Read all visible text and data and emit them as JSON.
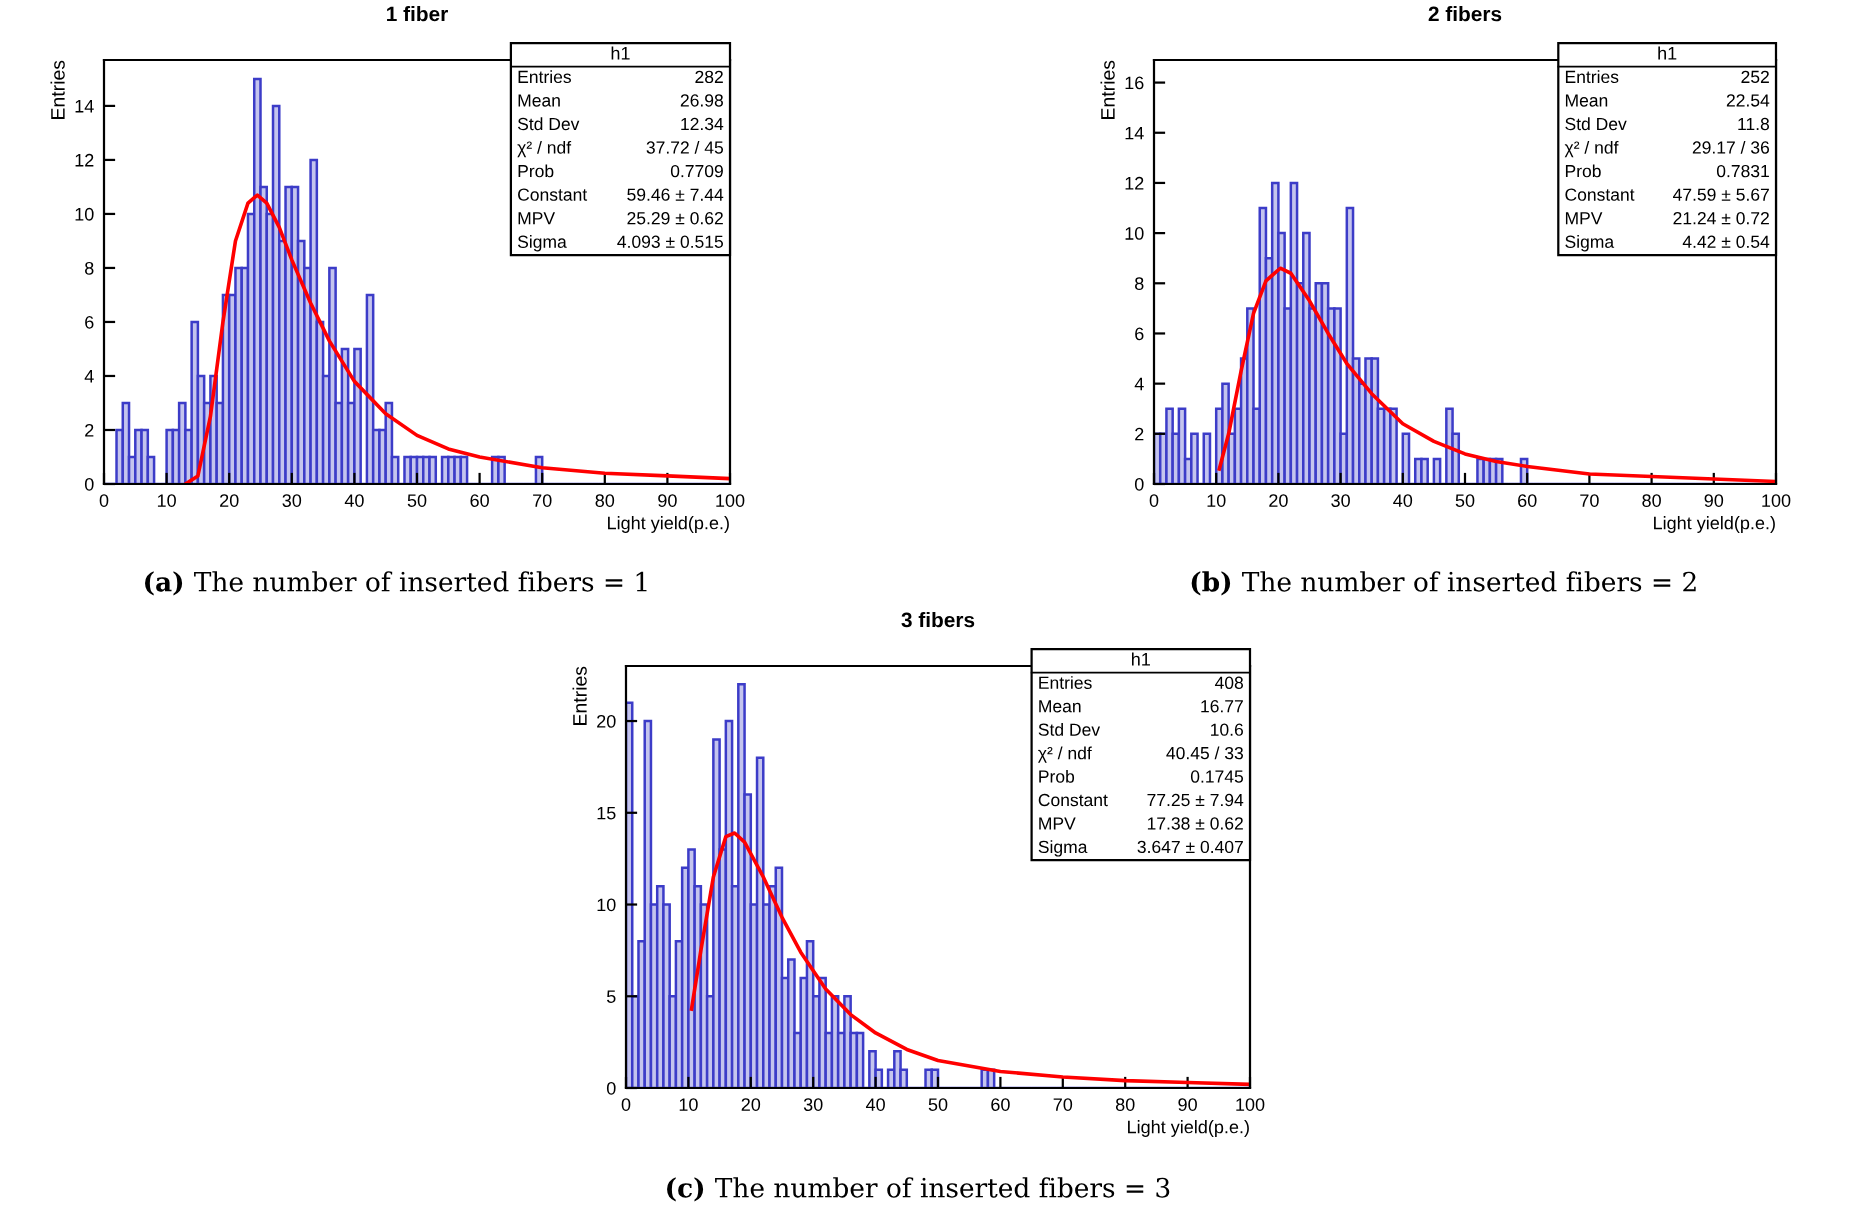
{
  "chart_data": [
    {
      "type": "histogram",
      "title": "1 fiber",
      "xlabel": "Light yield(p.e.)",
      "ylabel": "Entries",
      "bins": [
        0,
        1,
        2,
        3,
        4,
        5,
        6,
        7,
        8,
        9,
        10,
        11,
        12,
        13,
        14,
        15,
        16,
        17,
        18,
        19,
        20,
        21,
        22,
        23,
        24,
        25,
        26,
        27,
        28,
        29,
        30,
        31,
        32,
        33,
        34,
        35,
        36,
        37,
        38,
        39,
        40,
        41,
        42,
        43,
        44,
        45,
        46,
        47,
        48,
        49,
        50,
        51,
        52,
        53,
        54,
        55,
        56,
        57,
        58,
        59,
        60,
        61,
        62,
        63,
        64,
        65,
        66,
        67,
        68,
        69,
        70,
        71,
        72,
        73,
        74,
        75,
        76,
        77,
        78,
        79,
        80,
        81,
        82,
        83,
        84,
        85,
        86,
        87,
        88,
        89,
        90,
        91,
        92,
        93,
        94,
        95,
        96,
        97,
        98,
        99,
        100
      ],
      "series": [
        {
          "type": "histogram",
          "color": "#3c3cc8",
          "values": [
            0,
            0,
            2,
            3,
            1,
            2,
            2,
            1,
            0,
            0,
            2,
            2,
            3,
            2,
            6,
            4,
            3,
            4,
            3,
            7,
            7,
            8,
            8,
            10,
            15,
            11,
            10,
            14,
            9,
            11,
            11,
            9,
            8,
            12,
            6,
            4,
            8,
            3,
            5,
            3,
            5,
            0,
            7,
            2,
            2,
            3,
            1,
            0,
            1,
            1,
            1,
            1,
            1,
            0,
            1,
            1,
            1,
            1,
            0,
            0,
            0,
            0,
            1,
            1,
            0,
            0,
            0,
            0,
            0,
            1,
            0,
            0,
            0,
            0,
            0,
            0,
            0,
            0,
            0,
            0,
            0,
            0,
            0,
            0,
            0,
            0,
            0,
            0,
            0,
            0,
            0,
            0,
            0,
            0,
            0,
            0,
            0,
            0,
            0,
            0
          ]
        },
        {
          "type": "line",
          "color": "#ff0000",
          "x": [
            13,
            15,
            17,
            19,
            21,
            23,
            24.5,
            26,
            28,
            30,
            33,
            36,
            40,
            45,
            50,
            55,
            60,
            70,
            80,
            90,
            100
          ],
          "values": [
            0,
            0.3,
            2.5,
            6,
            9,
            10.4,
            10.7,
            10.4,
            9.5,
            8.3,
            6.7,
            5.3,
            3.8,
            2.6,
            1.8,
            1.3,
            1,
            0.6,
            0.4,
            0.3,
            0.2
          ]
        }
      ],
      "xlim": [
        0,
        100
      ],
      "xticks": [
        0,
        10,
        20,
        30,
        40,
        50,
        60,
        70,
        80,
        90,
        100
      ],
      "ylim": [
        0,
        15.7
      ],
      "yticks": [
        0,
        2,
        4,
        6,
        8,
        10,
        12,
        14
      ],
      "grid": false,
      "legend": false,
      "annotations": [
        "h1",
        "Entries",
        "282",
        "Mean",
        "26.98",
        "Std Dev",
        "12.34",
        "χ² / ndf",
        "37.72 / 45",
        "Prob",
        "0.7709",
        "Constant",
        "59.46 ± 7.44",
        "MPV",
        "25.29 ± 0.62",
        "Sigma",
        "4.093 ± 0.515",
        "(a) The number of inserted fibers = 1"
      ]
    },
    {
      "type": "histogram",
      "title": "2 fibers",
      "xlabel": "Light yield(p.e.)",
      "ylabel": "Entries",
      "bins": [
        0,
        1,
        2,
        3,
        4,
        5,
        6,
        7,
        8,
        9,
        10,
        11,
        12,
        13,
        14,
        15,
        16,
        17,
        18,
        19,
        20,
        21,
        22,
        23,
        24,
        25,
        26,
        27,
        28,
        29,
        30,
        31,
        32,
        33,
        34,
        35,
        36,
        37,
        38,
        39,
        40,
        41,
        42,
        43,
        44,
        45,
        46,
        47,
        48,
        49,
        50,
        51,
        52,
        53,
        54,
        55,
        56,
        57,
        58,
        59,
        60,
        61,
        62,
        63,
        64,
        65,
        66,
        67,
        68,
        69,
        70,
        71,
        72,
        73,
        74,
        75,
        76,
        77,
        78,
        79,
        80,
        81,
        82,
        83,
        84,
        85,
        86,
        87,
        88,
        89,
        90,
        91,
        92,
        93,
        94,
        95,
        96,
        97,
        98,
        99,
        100
      ],
      "series": [
        {
          "type": "histogram",
          "color": "#3c3cc8",
          "values": [
            2,
            2,
            3,
            2,
            3,
            1,
            2,
            0,
            2,
            0,
            3,
            4,
            2,
            3,
            5,
            7,
            3,
            11,
            9,
            12,
            10,
            7,
            12,
            8,
            10,
            7,
            8,
            8,
            7,
            7,
            2,
            11,
            5,
            4,
            5,
            5,
            3,
            3,
            3,
            0,
            2,
            0,
            1,
            1,
            0,
            1,
            0,
            3,
            2,
            0,
            0,
            0,
            1,
            1,
            1,
            1,
            0,
            0,
            0,
            1,
            0,
            0,
            0,
            0,
            0,
            0,
            0,
            0,
            0,
            0,
            0,
            0,
            0,
            0,
            0,
            0,
            0,
            0,
            0,
            0,
            0,
            0,
            0,
            0,
            0,
            0,
            0,
            0,
            0,
            0,
            0,
            0,
            0,
            0,
            0,
            0,
            0,
            0,
            0,
            0
          ]
        },
        {
          "type": "line",
          "color": "#ff0000",
          "x": [
            10.5,
            12,
            14,
            16,
            18,
            20.3,
            22,
            25,
            28,
            31,
            35,
            40,
            45,
            50,
            55,
            60,
            70,
            80,
            90,
            100
          ],
          "values": [
            0.6,
            2,
            4.5,
            6.8,
            8.1,
            8.6,
            8.4,
            7.3,
            6,
            4.8,
            3.6,
            2.4,
            1.7,
            1.2,
            0.9,
            0.7,
            0.4,
            0.3,
            0.2,
            0.1
          ]
        }
      ],
      "xlim": [
        0,
        100
      ],
      "xticks": [
        0,
        10,
        20,
        30,
        40,
        50,
        60,
        70,
        80,
        90,
        100
      ],
      "ylim": [
        0,
        16.9
      ],
      "yticks": [
        0,
        2,
        4,
        6,
        8,
        10,
        12,
        14,
        16
      ],
      "grid": false,
      "legend": false,
      "annotations": [
        "h1",
        "Entries",
        "252",
        "Mean",
        "22.54",
        "Std Dev",
        "11.8",
        "χ² / ndf",
        "29.17 / 36",
        "Prob",
        "0.7831",
        "Constant",
        "47.59 ± 5.67",
        "MPV",
        "21.24 ± 0.72",
        "Sigma",
        "4.42 ± 0.54",
        "(b) The number of inserted fibers = 2"
      ]
    },
    {
      "type": "histogram",
      "title": "3 fibers",
      "xlabel": "Light yield(p.e.)",
      "ylabel": "Entries",
      "bins": [
        0,
        1,
        2,
        3,
        4,
        5,
        6,
        7,
        8,
        9,
        10,
        11,
        12,
        13,
        14,
        15,
        16,
        17,
        18,
        19,
        20,
        21,
        22,
        23,
        24,
        25,
        26,
        27,
        28,
        29,
        30,
        31,
        32,
        33,
        34,
        35,
        36,
        37,
        38,
        39,
        40,
        41,
        42,
        43,
        44,
        45,
        46,
        47,
        48,
        49,
        50,
        51,
        52,
        53,
        54,
        55,
        56,
        57,
        58,
        59,
        60,
        61,
        62,
        63,
        64,
        65,
        66,
        67,
        68,
        69,
        70,
        71,
        72,
        73,
        74,
        75,
        76,
        77,
        78,
        79,
        80,
        81,
        82,
        83,
        84,
        85,
        86,
        87,
        88,
        89,
        90,
        91,
        92,
        93,
        94,
        95,
        96,
        97,
        98,
        99,
        100
      ],
      "series": [
        {
          "type": "histogram",
          "color": "#3c3cc8",
          "values": [
            21,
            5,
            8,
            20,
            10,
            11,
            10,
            5,
            8,
            12,
            13,
            11,
            10,
            5,
            19,
            13,
            20,
            11,
            22,
            16,
            10,
            18,
            10,
            11,
            12,
            6,
            7,
            3,
            6,
            8,
            5,
            6,
            3,
            5,
            3,
            5,
            3,
            3,
            0,
            2,
            1,
            0,
            1,
            2,
            1,
            0,
            0,
            0,
            1,
            1,
            0,
            0,
            0,
            0,
            0,
            0,
            0,
            1,
            1,
            0,
            0,
            0,
            0,
            0,
            0,
            0,
            0,
            0,
            0,
            0,
            0,
            0,
            0,
            0,
            0,
            0,
            0,
            0,
            0,
            0,
            0,
            0,
            0,
            0,
            0,
            0,
            0,
            0,
            0,
            0,
            0,
            0,
            0,
            0,
            0,
            0,
            0,
            0,
            0,
            0
          ]
        },
        {
          "type": "line",
          "color": "#ff0000",
          "x": [
            10.5,
            12,
            14,
            16,
            17.4,
            19,
            22,
            25,
            28,
            32,
            36,
            40,
            45,
            50,
            60,
            70,
            80,
            90,
            100
          ],
          "values": [
            4.3,
            7.5,
            11.5,
            13.7,
            13.9,
            13.4,
            11.5,
            9.3,
            7.4,
            5.4,
            4,
            3,
            2.1,
            1.5,
            0.9,
            0.6,
            0.4,
            0.3,
            0.2
          ]
        }
      ],
      "xlim": [
        0,
        100
      ],
      "xticks": [
        0,
        10,
        20,
        30,
        40,
        50,
        60,
        70,
        80,
        90,
        100
      ],
      "ylim": [
        0,
        23
      ],
      "yticks": [
        0,
        5,
        10,
        15,
        20
      ],
      "grid": false,
      "legend": false,
      "annotations": [
        "h1",
        "Entries",
        "408",
        "Mean",
        "16.77",
        "Std Dev",
        "10.6",
        "χ² / ndf",
        "40.45 / 33",
        "Prob",
        "0.1745",
        "Constant",
        "77.25 ± 7.94",
        "MPV",
        "17.38 ± 0.62",
        "Sigma",
        "3.647 ± 0.407",
        "(c) The number of inserted fibers = 3"
      ]
    }
  ]
}
